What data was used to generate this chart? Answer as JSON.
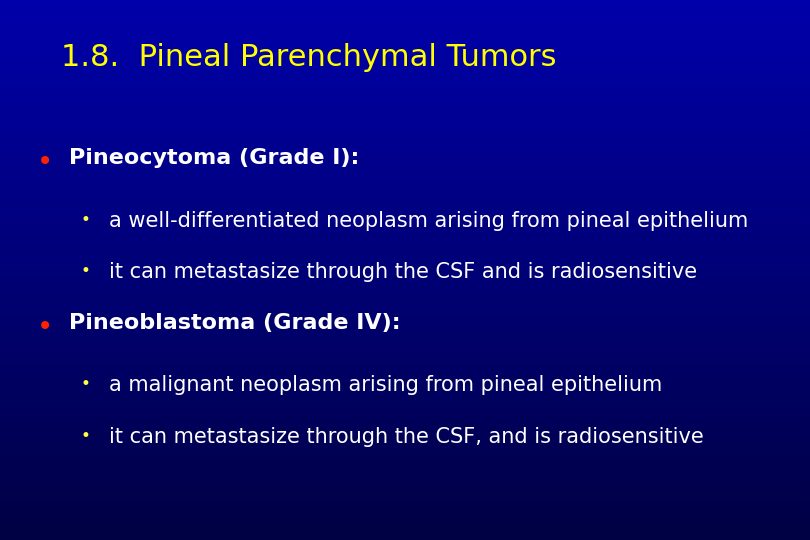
{
  "title": "1.8.  Pineal Parenchymal Tumors",
  "title_color": "#FFFF00",
  "title_fontsize": 22,
  "background_top": "#000033",
  "background_bottom": "#0000BB",
  "bullet_color": "#FF2200",
  "sub_bullet_color": "#FFFF44",
  "main_text_color": "#FFFFFF",
  "sub_text_color": "#FFFFFF",
  "main_bullet_fontsize": 16,
  "sub_bullet_fontsize": 15,
  "sections": [
    {
      "heading": "Pineocytoma (Grade I):",
      "sub_items": [
        "a well-differentiated neoplasm arising from pineal epithelium",
        "it can metastasize through the CSF and is radiosensitive"
      ]
    },
    {
      "heading": "Pineoblastoma (Grade IV):",
      "sub_items": [
        "a malignant neoplasm arising from pineal epithelium",
        "it can metastasize through the CSF, and is radiosensitive"
      ]
    }
  ]
}
